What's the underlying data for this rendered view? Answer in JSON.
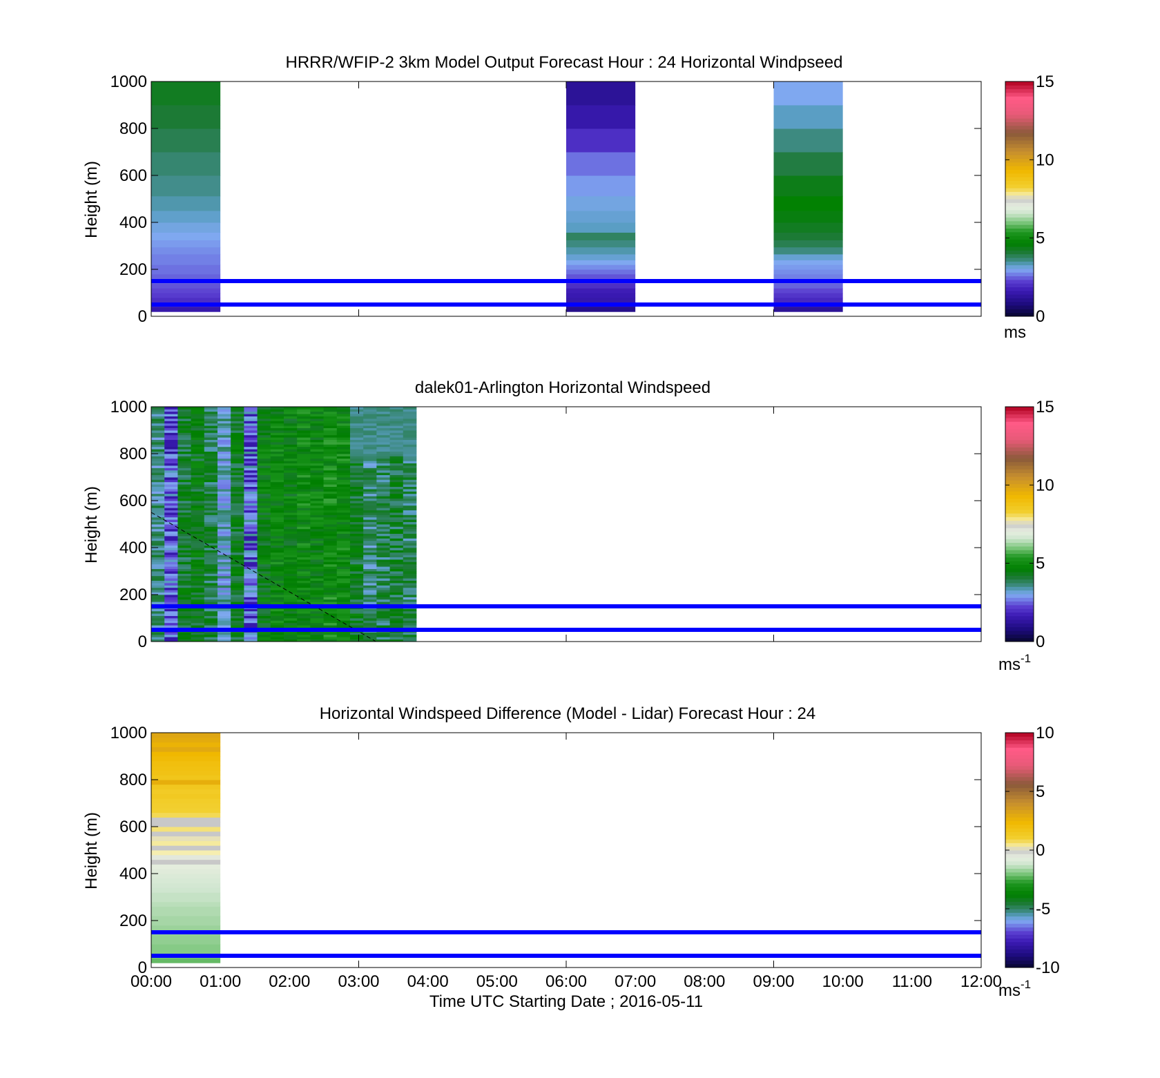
{
  "figure": {
    "xlabel": "Time UTC  Starting Date ; 2016-05-11",
    "time_ticks": [
      "00:00",
      "01:00",
      "02:00",
      "03:00",
      "04:00",
      "05:00",
      "06:00",
      "07:00",
      "08:00",
      "09:00",
      "10:00",
      "11:00",
      "12:00"
    ],
    "reference_lines_m": [
      50,
      150
    ],
    "reference_line_color": "#0000ff"
  },
  "chart_data": [
    {
      "type": "heatmap",
      "title": "HRRR/WFIP-2 3km Model Output   Forecast Hour : 24 Horizontal Windpseed",
      "ylabel": "Height (m)",
      "xlim": [
        "00:00",
        "12:00"
      ],
      "ylim": [
        0,
        1000
      ],
      "y_ticks": [
        0,
        200,
        400,
        600,
        800,
        1000
      ],
      "colorbar": {
        "ticks": [
          0,
          5,
          10,
          15
        ],
        "label": "ms",
        "clim": [
          0,
          15
        ]
      },
      "columns": [
        {
          "start": "00:00",
          "end": "01:00",
          "levels": [
            [
              30,
              1.5
            ],
            [
              50,
              1.8
            ],
            [
              70,
              2.0
            ],
            [
              90,
              2.2
            ],
            [
              110,
              2.3
            ],
            [
              130,
              2.4
            ],
            [
              150,
              2.5
            ],
            [
              170,
              2.5
            ],
            [
              190,
              2.6
            ],
            [
              210,
              2.6
            ],
            [
              230,
              2.7
            ],
            [
              250,
              2.7
            ],
            [
              280,
              2.8
            ],
            [
              310,
              2.9
            ],
            [
              340,
              3.0
            ],
            [
              375,
              3.1
            ],
            [
              425,
              3.25
            ],
            [
              475,
              3.4
            ],
            [
              550,
              3.55
            ],
            [
              650,
              3.7
            ],
            [
              750,
              3.9
            ],
            [
              850,
              4.1
            ],
            [
              950,
              4.3
            ]
          ]
        },
        {
          "start": "06:00",
          "end": "07:00",
          "levels": [
            [
              30,
              1.0
            ],
            [
              50,
              1.3
            ],
            [
              70,
              1.5
            ],
            [
              90,
              1.6
            ],
            [
              110,
              1.7
            ],
            [
              130,
              2.0
            ],
            [
              150,
              2.2
            ],
            [
              170,
              2.4
            ],
            [
              190,
              2.6
            ],
            [
              210,
              2.8
            ],
            [
              230,
              3.0
            ],
            [
              250,
              3.2
            ],
            [
              280,
              3.4
            ],
            [
              310,
              3.6
            ],
            [
              340,
              3.8
            ],
            [
              375,
              3.3
            ],
            [
              425,
              3.2
            ],
            [
              475,
              3.1
            ],
            [
              550,
              2.9
            ],
            [
              650,
              2.6
            ],
            [
              750,
              2.0
            ],
            [
              850,
              1.5
            ],
            [
              950,
              1.2
            ]
          ]
        },
        {
          "start": "09:00",
          "end": "10:00",
          "levels": [
            [
              30,
              1.2
            ],
            [
              50,
              1.6
            ],
            [
              70,
              1.9
            ],
            [
              90,
              2.1
            ],
            [
              110,
              2.3
            ],
            [
              130,
              2.5
            ],
            [
              150,
              2.6
            ],
            [
              170,
              2.7
            ],
            [
              190,
              2.8
            ],
            [
              210,
              2.9
            ],
            [
              230,
              3.0
            ],
            [
              250,
              3.2
            ],
            [
              280,
              3.6
            ],
            [
              310,
              3.9
            ],
            [
              340,
              4.1
            ],
            [
              375,
              4.3
            ],
            [
              425,
              4.5
            ],
            [
              475,
              4.7
            ],
            [
              550,
              4.4
            ],
            [
              650,
              4.0
            ],
            [
              750,
              3.6
            ],
            [
              850,
              3.3
            ],
            [
              950,
              3.0
            ]
          ]
        }
      ]
    },
    {
      "type": "heatmap",
      "title": "dalek01-Arlington  Horizontal Windspeed",
      "ylabel": "Height (m)",
      "xlim": [
        "00:00",
        "12:00"
      ],
      "ylim": [
        0,
        1000
      ],
      "y_ticks": [
        0,
        200,
        400,
        600,
        800,
        1000
      ],
      "colorbar": {
        "ticks": [
          0,
          5,
          10,
          15
        ],
        "label": "ms",
        "label_superscript": "-1",
        "clim": [
          0,
          15
        ]
      },
      "data_extent": [
        "00:00",
        "03:50"
      ],
      "column_base_speeds": [
        3.6,
        2.7,
        4.2,
        4.4,
        4.0,
        3.3,
        4.3,
        2.9,
        4.6,
        4.8,
        4.7,
        4.9,
        4.8,
        5.0,
        4.9,
        4.3,
        3.7,
        3.9,
        4.1,
        3.8
      ],
      "annotation_line": {
        "from": [
          "00:00",
          550
        ],
        "to": [
          "03:15",
          0
        ],
        "style": "dashed"
      }
    },
    {
      "type": "heatmap",
      "title": "Horizontal Windspeed Difference (Model - Lidar) Forecast Hour : 24",
      "ylabel": "Height (m)",
      "xlim": [
        "00:00",
        "12:00"
      ],
      "ylim": [
        0,
        1000
      ],
      "y_ticks": [
        0,
        200,
        400,
        600,
        800,
        1000
      ],
      "colorbar": {
        "ticks": [
          -10,
          -5,
          0,
          5,
          10
        ],
        "label": "ms",
        "label_superscript": "-1",
        "clim": [
          -10,
          10
        ]
      },
      "columns": [
        {
          "start": "00:00",
          "end": "01:00",
          "levels": [
            [
              30,
              -2.2
            ],
            [
              50,
              -2.0
            ],
            [
              70,
              -1.9
            ],
            [
              90,
              -1.9
            ],
            [
              110,
              -1.8
            ],
            [
              130,
              -1.8
            ],
            [
              150,
              -1.7
            ],
            [
              170,
              -1.7
            ],
            [
              190,
              -1.6
            ],
            [
              210,
              -1.6
            ],
            [
              230,
              -1.5
            ],
            [
              250,
              -1.5
            ],
            [
              270,
              -1.4
            ],
            [
              290,
              -1.3
            ],
            [
              310,
              -1.3
            ],
            [
              330,
              -1.2
            ],
            [
              350,
              -1.1
            ],
            [
              370,
              -1.0
            ],
            [
              390,
              -0.9
            ],
            [
              410,
              -0.8
            ],
            [
              430,
              -0.7
            ],
            [
              450,
              0.0
            ],
            [
              470,
              -0.5
            ],
            [
              490,
              0.3
            ],
            [
              510,
              0.0
            ],
            [
              530,
              0.4
            ],
            [
              550,
              0.2
            ],
            [
              570,
              0.0
            ],
            [
              590,
              0.6
            ],
            [
              610,
              0.0
            ],
            [
              630,
              0.0
            ],
            [
              650,
              0.8
            ],
            [
              670,
              1.0
            ],
            [
              690,
              1.1
            ],
            [
              710,
              1.2
            ],
            [
              730,
              1.4
            ],
            [
              750,
              1.3
            ],
            [
              770,
              1.5
            ],
            [
              790,
              2.8
            ],
            [
              810,
              1.6
            ],
            [
              830,
              1.8
            ],
            [
              850,
              1.9
            ],
            [
              870,
              2.0
            ],
            [
              890,
              2.2
            ],
            [
              910,
              2.4
            ],
            [
              930,
              3.0
            ],
            [
              950,
              2.6
            ],
            [
              970,
              2.9
            ],
            [
              990,
              3.1
            ]
          ]
        }
      ]
    }
  ]
}
